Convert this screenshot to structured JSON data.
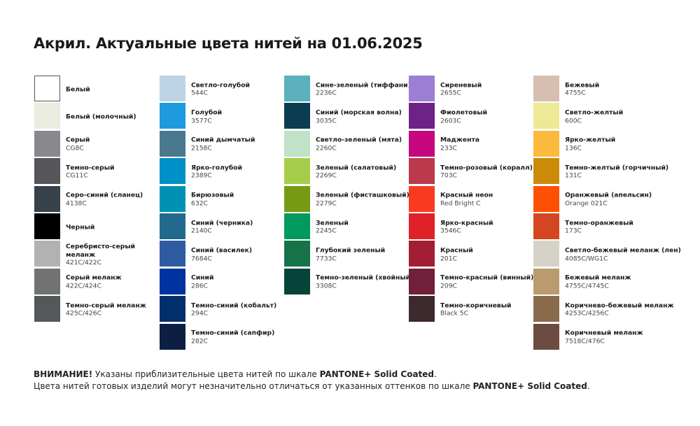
{
  "title": "Акрил. Актуальные цвета нитей на 01.06.2025",
  "columns": [
    [
      {
        "name": "Белый",
        "code": "",
        "color": "#ffffff"
      },
      {
        "name": "Белый (молочный)",
        "code": "",
        "color": "#ebebe0"
      },
      {
        "name": "Серый",
        "code": "CG8C",
        "color": "#88898c"
      },
      {
        "name": "Темно-серый",
        "code": "CG11C",
        "color": "#55565a"
      },
      {
        "name": "Серо-синий (сланец)",
        "code": "4138C",
        "color": "#37424a"
      },
      {
        "name": "Черный",
        "code": "",
        "color": "#000000"
      },
      {
        "name": "Серебристо-серый меланж",
        "code": "421C/422C",
        "color": "#b1b3b3"
      },
      {
        "name": "Серый меланж",
        "code": "422C/424C",
        "color": "#707372"
      },
      {
        "name": "Темно-серый меланж",
        "code": "425C/426C",
        "color": "#54585a"
      }
    ],
    [
      {
        "name": "Светло-голубой",
        "code": "544C",
        "color": "#bcd4e6"
      },
      {
        "name": "Голубой",
        "code": "3577C",
        "color": "#1e9ade"
      },
      {
        "name": "Синий дымчатый",
        "code": "2158C",
        "color": "#4a788f"
      },
      {
        "name": "Ярко-голубой",
        "code": "2389C",
        "color": "#0090c8"
      },
      {
        "name": "Бирюзовый",
        "code": "632C",
        "color": "#0092b4"
      },
      {
        "name": "Синий (черника)",
        "code": "2140C",
        "color": "#216a8e"
      },
      {
        "name": "Синий (василек)",
        "code": "7684C",
        "color": "#2f5ca0"
      },
      {
        "name": "Синий",
        "code": "286C",
        "color": "#0033a0"
      },
      {
        "name": "Темно-синий (кобальт)",
        "code": "294C",
        "color": "#002f6c"
      },
      {
        "name": "Темно-синий (сапфир)",
        "code": "282C",
        "color": "#0c1f43"
      }
    ],
    [
      {
        "name": "Сине-зеленый (тиффани)",
        "code": "2236C",
        "color": "#5ab1bc"
      },
      {
        "name": "Синий (морская волна)",
        "code": "3035C",
        "color": "#0b3c52"
      },
      {
        "name": "Светло-зеленый (мята)",
        "code": "2260C",
        "color": "#c0e2c8"
      },
      {
        "name": "Зеленый (салатовый)",
        "code": "2269C",
        "color": "#a6cd4a"
      },
      {
        "name": "Зеленый (фисташковый)",
        "code": "2279C",
        "color": "#779a14"
      },
      {
        "name": "Зеленый",
        "code": "2245C",
        "color": "#009a5e"
      },
      {
        "name": "Глубокий зеленый",
        "code": "7733C",
        "color": "#157249"
      },
      {
        "name": "Темно-зеленый (хвойный)",
        "code": "3308C",
        "color": "#06443a"
      }
    ],
    [
      {
        "name": "Сиреневый",
        "code": "2655C",
        "color": "#9b7fd2"
      },
      {
        "name": "Фиолетовый",
        "code": "2603C",
        "color": "#6f2286"
      },
      {
        "name": "Маджента",
        "code": "233C",
        "color": "#c6077e"
      },
      {
        "name": "Темно-розовый (коралл)",
        "code": "703C",
        "color": "#bb3a4c"
      },
      {
        "name": "Красный неон",
        "code": "Red Bright C",
        "color": "#f93a20"
      },
      {
        "name": "Ярко-красный",
        "code": "3546C",
        "color": "#e02127"
      },
      {
        "name": "Красный",
        "code": "201C",
        "color": "#a21e32"
      },
      {
        "name": "Темно-красный (винный)",
        "code": "209C",
        "color": "#70203a"
      },
      {
        "name": "Темно-коричневый",
        "code": "Black 5C",
        "color": "#3c2a2d"
      }
    ],
    [
      {
        "name": "Бежевый",
        "code": "4755C",
        "color": "#d6bfb1"
      },
      {
        "name": "Светло-желтый",
        "code": "600C",
        "color": "#eee996"
      },
      {
        "name": "Ярко-желтый",
        "code": "136C",
        "color": "#fbba3b"
      },
      {
        "name": "Темно-желтый (горчичный)",
        "code": "131C",
        "color": "#cb8a07"
      },
      {
        "name": "Оранжевый (апельсин)",
        "code": "Orange 021C",
        "color": "#fe5000"
      },
      {
        "name": "Темно-оранжевый",
        "code": "173C",
        "color": "#d4461f"
      },
      {
        "name": "Светло-бежевый меланж (лен)",
        "code": "4085C/WG1C",
        "color": "#d6d2c6"
      },
      {
        "name": "Бежевый меланж",
        "code": "4755C/4745C",
        "color": "#b99b6d"
      },
      {
        "name": "Коричнево-бежевый меланж",
        "code": "4253C/4256C",
        "color": "#8a6b4c"
      },
      {
        "name": "Коричневый меланж",
        "code": "7518C/476C",
        "color": "#6c4b41"
      }
    ]
  ],
  "note": {
    "line1_bold": "ВНИМАНИЕ!",
    "line1_text": " Указаны приблизительные цвета нитей по шкале ",
    "line1_scale": "PANTONE+ Solid Coated",
    "line1_end": ".",
    "line2_text": "Цвета нитей готовых изделий могут незначительно отличаться от указанных оттенков по шкале ",
    "line2_scale": "PANTONE+ Solid Coated",
    "line2_end": "."
  }
}
